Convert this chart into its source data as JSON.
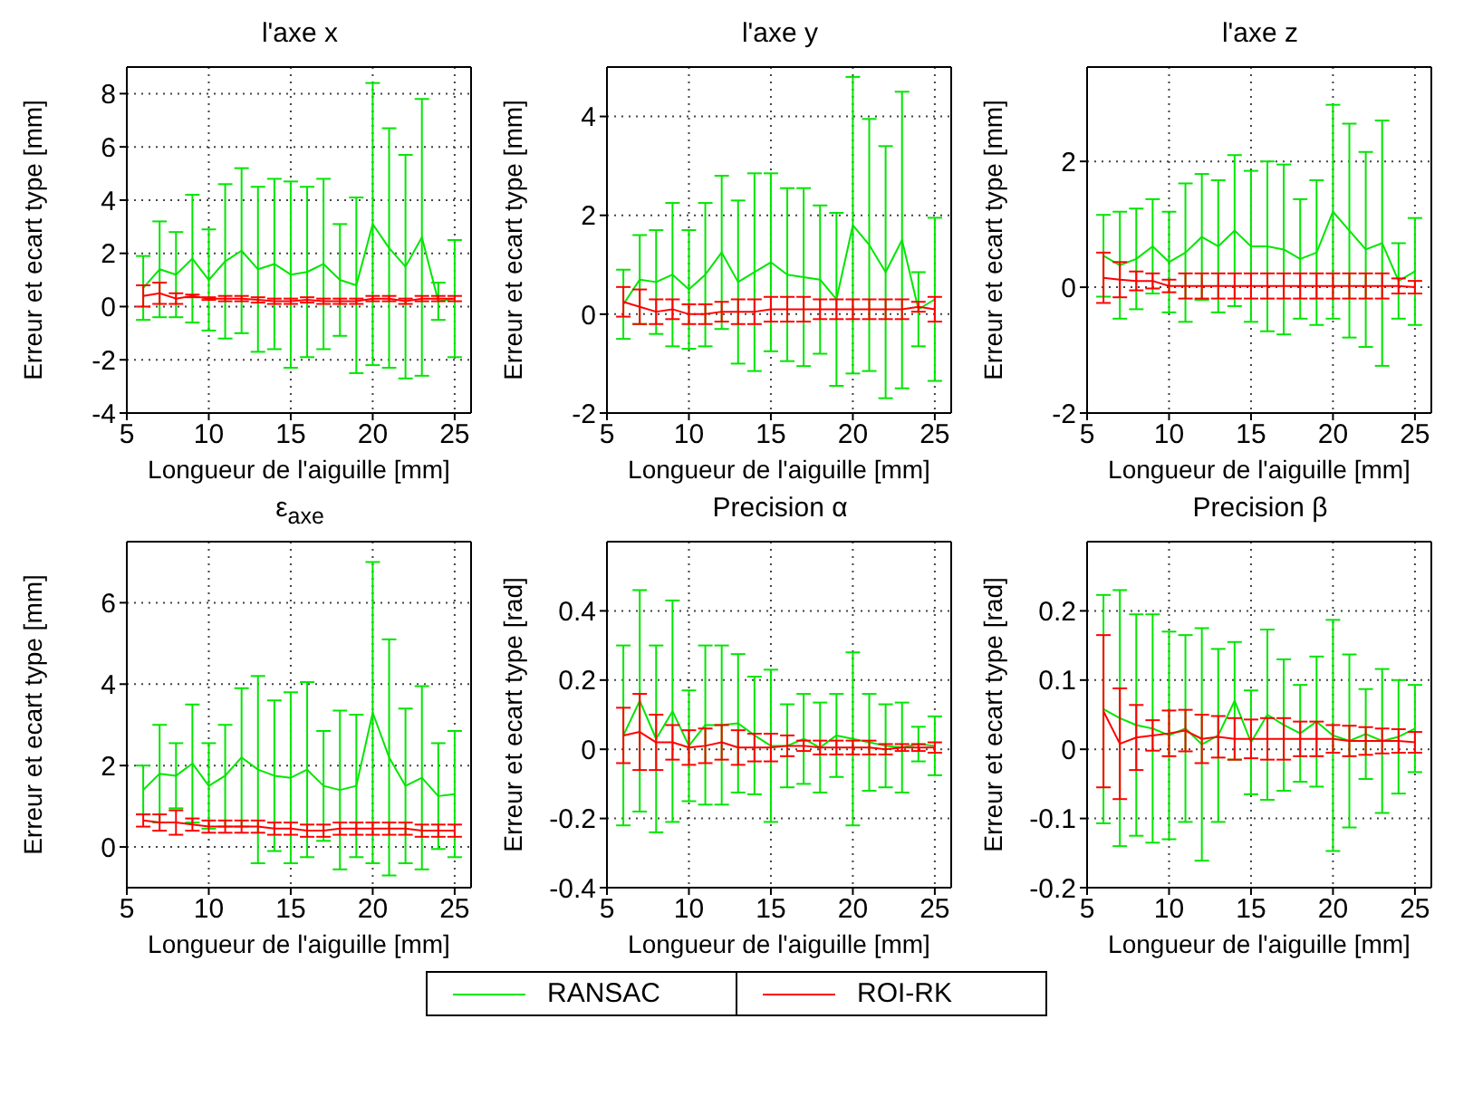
{
  "chart_data": [
    {
      "type": "line",
      "title": "l'axe x",
      "xlabel": "Longueur de l'aiguille [mm]",
      "ylabel": "Erreur et ecart type [mm]",
      "x": [
        6,
        7,
        8,
        9,
        10,
        11,
        12,
        13,
        14,
        15,
        16,
        17,
        18,
        19,
        20,
        21,
        22,
        23,
        24,
        25
      ],
      "xlim": [
        5,
        26
      ],
      "xticks": [
        5,
        10,
        15,
        20,
        25
      ],
      "ylim": [
        -4,
        9
      ],
      "yticks": [
        -4,
        -2,
        0,
        2,
        4,
        6,
        8
      ],
      "grid": true,
      "marker": "none",
      "legend": "bottom",
      "series": [
        {
          "name": "RANSAC",
          "color": "#00e600",
          "values": [
            0.7,
            1.4,
            1.2,
            1.8,
            1.0,
            1.7,
            2.1,
            1.4,
            1.6,
            1.2,
            1.3,
            1.6,
            1.0,
            0.8,
            3.1,
            2.2,
            1.5,
            2.6,
            0.2,
            0.3
          ],
          "errors": [
            1.2,
            1.8,
            1.6,
            2.4,
            1.9,
            2.9,
            3.1,
            3.1,
            3.2,
            3.5,
            3.2,
            3.2,
            2.1,
            3.3,
            5.3,
            4.5,
            4.2,
            5.2,
            0.7,
            2.2
          ]
        },
        {
          "name": "ROI-RK",
          "color": "#ff0000",
          "values": [
            0.4,
            0.5,
            0.3,
            0.4,
            0.3,
            0.3,
            0.3,
            0.25,
            0.2,
            0.2,
            0.25,
            0.2,
            0.2,
            0.2,
            0.3,
            0.3,
            0.2,
            0.3,
            0.3,
            0.3
          ],
          "errors": [
            0.4,
            0.4,
            0.2,
            0.05,
            0.05,
            0.1,
            0.1,
            0.1,
            0.1,
            0.1,
            0.1,
            0.1,
            0.1,
            0.1,
            0.1,
            0.1,
            0.1,
            0.1,
            0.1,
            0.1
          ]
        }
      ]
    },
    {
      "type": "line",
      "title": "l'axe y",
      "xlabel": "Longueur de l'aiguille [mm]",
      "ylabel": "Erreur et ecart type [mm]",
      "x": [
        6,
        7,
        8,
        9,
        10,
        11,
        12,
        13,
        14,
        15,
        16,
        17,
        18,
        19,
        20,
        21,
        22,
        23,
        24,
        25
      ],
      "xlim": [
        5,
        26
      ],
      "xticks": [
        5,
        10,
        15,
        20,
        25
      ],
      "ylim": [
        -2,
        5
      ],
      "yticks": [
        -2,
        0,
        2,
        4
      ],
      "grid": true,
      "marker": "none",
      "series": [
        {
          "color": "#00e600",
          "values": [
            0.2,
            0.7,
            0.65,
            0.8,
            0.5,
            0.8,
            1.25,
            0.65,
            0.85,
            1.05,
            0.8,
            0.75,
            0.7,
            0.3,
            1.8,
            1.4,
            0.85,
            1.5,
            0.1,
            0.3
          ],
          "errors": [
            0.7,
            0.9,
            1.05,
            1.45,
            1.2,
            1.45,
            1.55,
            1.65,
            2.0,
            1.8,
            1.75,
            1.8,
            1.5,
            1.75,
            3.0,
            2.55,
            2.55,
            3.0,
            0.75,
            1.65
          ]
        },
        {
          "color": "#ff0000",
          "values": [
            0.25,
            0.15,
            0.05,
            0.1,
            0,
            0,
            0.05,
            0.05,
            0.05,
            0.1,
            0.1,
            0.1,
            0.1,
            0.1,
            0.1,
            0.1,
            0.1,
            0.1,
            0.15,
            0.1
          ],
          "errors": [
            0.3,
            0.35,
            0.25,
            0.2,
            0.2,
            0.2,
            0.2,
            0.25,
            0.25,
            0.25,
            0.25,
            0.25,
            0.2,
            0.2,
            0.2,
            0.2,
            0.2,
            0.2,
            0.1,
            0.25
          ]
        }
      ]
    },
    {
      "type": "line",
      "title": "l'axe z",
      "xlabel": "Longueur de l'aiguille [mm]",
      "ylabel": "Erreur et ecart type [mm]",
      "x": [
        6,
        7,
        8,
        9,
        10,
        11,
        12,
        13,
        14,
        15,
        16,
        17,
        18,
        19,
        20,
        21,
        22,
        23,
        24,
        25
      ],
      "xlim": [
        5,
        26
      ],
      "xticks": [
        5,
        10,
        15,
        20,
        25
      ],
      "ylim": [
        -2,
        3.5
      ],
      "yticks": [
        -2,
        0,
        2
      ],
      "grid": true,
      "marker": "none",
      "series": [
        {
          "color": "#00e600",
          "values": [
            0.5,
            0.35,
            0.45,
            0.65,
            0.4,
            0.55,
            0.8,
            0.65,
            0.9,
            0.65,
            0.65,
            0.6,
            0.45,
            0.55,
            1.2,
            0.9,
            0.6,
            0.7,
            0.1,
            0.25
          ],
          "errors": [
            0.65,
            0.85,
            0.8,
            0.75,
            0.8,
            1.1,
            1.0,
            1.05,
            1.2,
            1.2,
            1.35,
            1.35,
            0.95,
            1.15,
            1.7,
            1.7,
            1.55,
            1.95,
            0.6,
            0.85
          ]
        },
        {
          "color": "#ff0000",
          "values": [
            0.15,
            0.12,
            0.1,
            0.1,
            0.02,
            0.02,
            0.02,
            0.02,
            0.02,
            0.02,
            0.02,
            0.02,
            0.02,
            0.02,
            0.02,
            0.02,
            0.02,
            0.02,
            0.02,
            0
          ],
          "errors": [
            0.4,
            0.28,
            0.15,
            0.12,
            0.1,
            0.2,
            0.2,
            0.2,
            0.2,
            0.2,
            0.2,
            0.2,
            0.2,
            0.2,
            0.2,
            0.2,
            0.2,
            0.2,
            0.12,
            0.1
          ]
        }
      ]
    },
    {
      "type": "line",
      "title": "ε$_{axe}$",
      "xlabel": "Longueur de l'aiguille [mm]",
      "ylabel": "Erreur et ecart type [mm]",
      "x": [
        6,
        7,
        8,
        9,
        10,
        11,
        12,
        13,
        14,
        15,
        16,
        17,
        18,
        19,
        20,
        21,
        22,
        23,
        24,
        25
      ],
      "xlim": [
        5,
        26
      ],
      "xticks": [
        5,
        10,
        15,
        20,
        25
      ],
      "ylim": [
        -1,
        7.5
      ],
      "yticks": [
        0,
        2,
        4,
        6
      ],
      "grid": true,
      "marker": "none",
      "series": [
        {
          "color": "#00e600",
          "values": [
            1.4,
            1.8,
            1.75,
            2.05,
            1.5,
            1.75,
            2.2,
            1.9,
            1.75,
            1.7,
            1.9,
            1.5,
            1.4,
            1.5,
            3.3,
            2.2,
            1.5,
            1.7,
            1.25,
            1.3
          ],
          "errors": [
            0.6,
            1.2,
            0.8,
            1.45,
            1.05,
            1.25,
            1.7,
            2.3,
            1.85,
            2.1,
            2.15,
            1.35,
            1.95,
            1.75,
            3.7,
            2.9,
            1.9,
            2.25,
            1.3,
            1.55
          ]
        },
        {
          "color": "#ff0000",
          "values": [
            0.65,
            0.6,
            0.6,
            0.55,
            0.5,
            0.5,
            0.5,
            0.5,
            0.45,
            0.45,
            0.4,
            0.4,
            0.45,
            0.45,
            0.45,
            0.45,
            0.45,
            0.4,
            0.4,
            0.4
          ],
          "errors": [
            0.15,
            0.2,
            0.3,
            0.15,
            0.15,
            0.15,
            0.15,
            0.15,
            0.15,
            0.15,
            0.15,
            0.15,
            0.15,
            0.15,
            0.15,
            0.15,
            0.15,
            0.15,
            0.15,
            0.15
          ]
        }
      ]
    },
    {
      "type": "line",
      "title": "Precision α",
      "xlabel": "Longueur de l'aiguille [mm]",
      "ylabel": "Erreur et ecart type [rad]",
      "x": [
        6,
        7,
        8,
        9,
        10,
        11,
        12,
        13,
        14,
        15,
        16,
        17,
        18,
        19,
        20,
        21,
        22,
        23,
        24,
        25
      ],
      "xlim": [
        5,
        26
      ],
      "xticks": [
        5,
        10,
        15,
        20,
        25
      ],
      "ylim": [
        -0.4,
        0.6
      ],
      "yticks": [
        -0.4,
        -0.2,
        0,
        0.2,
        0.4
      ],
      "grid": true,
      "marker": "none",
      "series": [
        {
          "color": "#00e600",
          "values": [
            0.04,
            0.14,
            0.03,
            0.11,
            0.01,
            0.07,
            0.07,
            0.075,
            0.04,
            0.01,
            0.01,
            0.03,
            0.005,
            0.04,
            0.03,
            0.02,
            0.01,
            0.005,
            0.015,
            0.01
          ],
          "errors": [
            0.26,
            0.32,
            0.27,
            0.32,
            0.16,
            0.23,
            0.23,
            0.2,
            0.17,
            0.22,
            0.12,
            0.13,
            0.13,
            0.12,
            0.25,
            0.14,
            0.12,
            0.13,
            0.05,
            0.085
          ]
        },
        {
          "color": "#ff0000",
          "values": [
            0.04,
            0.05,
            0.02,
            0.02,
            0.005,
            0.01,
            0.02,
            0.005,
            0.005,
            0.005,
            0.01,
            0.01,
            0.005,
            0.005,
            0.005,
            0.005,
            0,
            0.005,
            0.005,
            0.005
          ],
          "errors": [
            0.08,
            0.11,
            0.08,
            0.05,
            0.05,
            0.05,
            0.05,
            0.05,
            0.04,
            0.04,
            0.03,
            0.015,
            0.02,
            0.02,
            0.02,
            0.02,
            0.015,
            0.01,
            0.01,
            0.015
          ]
        }
      ]
    },
    {
      "type": "line",
      "title": "Precision β",
      "xlabel": "Longueur de l'aiguille [mm]",
      "ylabel": "Erreur et ecart type [rad]",
      "x": [
        6,
        7,
        8,
        9,
        10,
        11,
        12,
        13,
        14,
        15,
        16,
        17,
        18,
        19,
        20,
        21,
        22,
        23,
        24,
        25
      ],
      "xlim": [
        5,
        26
      ],
      "xticks": [
        5,
        10,
        15,
        20,
        25
      ],
      "ylim": [
        -0.2,
        0.3
      ],
      "yticks": [
        -0.2,
        -0.1,
        0,
        0.1,
        0.2
      ],
      "grid": true,
      "marker": "none",
      "series": [
        {
          "color": "#00e600",
          "values": [
            0.058,
            0.045,
            0.035,
            0.03,
            0.02,
            0.03,
            0.007,
            0.02,
            0.07,
            0.01,
            0.05,
            0.035,
            0.023,
            0.04,
            0.02,
            0.012,
            0.022,
            0.012,
            0.018,
            0.03
          ],
          "errors": [
            0.165,
            0.185,
            0.16,
            0.165,
            0.15,
            0.135,
            0.168,
            0.125,
            0.085,
            0.075,
            0.123,
            0.095,
            0.07,
            0.094,
            0.167,
            0.125,
            0.065,
            0.104,
            0.082,
            0.063
          ]
        },
        {
          "color": "#ff0000",
          "values": [
            0.055,
            0.008,
            0.017,
            0.02,
            0.023,
            0.027,
            0.015,
            0.018,
            0.015,
            0.015,
            0.015,
            0.015,
            0.015,
            0.015,
            0.015,
            0.012,
            0.012,
            0.012,
            0.012,
            0.01
          ],
          "errors": [
            0.11,
            0.08,
            0.047,
            0.022,
            0.033,
            0.03,
            0.035,
            0.03,
            0.03,
            0.028,
            0.03,
            0.03,
            0.025,
            0.025,
            0.02,
            0.022,
            0.02,
            0.018,
            0.017,
            0.015
          ]
        }
      ]
    }
  ]
}
